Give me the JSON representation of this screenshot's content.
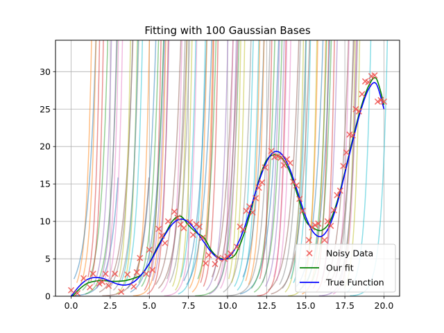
{
  "chart_data": {
    "type": "line",
    "title": "Fitting with 100 Gaussian Bases",
    "xlabel": "",
    "ylabel": "",
    "xlim": [
      -1.0,
      21.0
    ],
    "ylim": [
      0,
      34.2
    ],
    "grid": true,
    "legend_placement": "lower-right",
    "x_ticks": [
      0.0,
      2.5,
      5.0,
      7.5,
      10.0,
      12.5,
      15.0,
      17.5,
      20.0
    ],
    "x_tick_labels": [
      "0.0",
      "2.5",
      "5.0",
      "7.5",
      "10.0",
      "12.5",
      "15.0",
      "17.5",
      "20.0"
    ],
    "y_ticks": [
      0,
      5,
      10,
      15,
      20,
      25,
      30
    ],
    "y_tick_labels": [
      "0",
      "5",
      "10",
      "15",
      "20",
      "25",
      "30"
    ],
    "series": [
      {
        "name": "Noisy Data",
        "kind": "scatter",
        "marker": "x",
        "color": "#ef5350",
        "x": [
          0.0,
          0.4,
          0.8,
          1.2,
          1.4,
          1.8,
          2.0,
          2.2,
          2.4,
          2.8,
          3.2,
          3.6,
          4.0,
          4.2,
          4.4,
          4.8,
          5.0,
          5.2,
          5.6,
          5.8,
          6.0,
          6.2,
          6.6,
          6.8,
          7.0,
          7.2,
          7.6,
          7.8,
          8.0,
          8.2,
          8.4,
          8.6,
          8.8,
          9.2,
          9.4,
          9.8,
          10.0,
          10.2,
          10.6,
          10.8,
          11.0,
          11.2,
          11.4,
          11.6,
          11.8,
          12.0,
          12.2,
          12.4,
          12.8,
          13.0,
          13.2,
          13.4,
          13.6,
          13.8,
          14.0,
          14.2,
          14.4,
          14.6,
          14.8,
          15.2,
          15.4,
          15.6,
          15.8,
          16.2,
          16.4,
          16.6,
          16.8,
          17.0,
          17.2,
          17.4,
          17.6,
          17.8,
          18.0,
          18.2,
          18.4,
          18.6,
          18.8,
          19.0,
          19.2,
          19.4,
          19.6,
          19.8,
          20.0
        ],
        "y": [
          0.8,
          0.4,
          2.4,
          1.2,
          3.0,
          1.7,
          1.9,
          3.0,
          1.4,
          3.0,
          0.6,
          2.9,
          1.3,
          3.2,
          5.1,
          3.0,
          6.2,
          3.5,
          9.0,
          8.1,
          7.1,
          10.0,
          11.3,
          10.5,
          9.6,
          9.1,
          9.9,
          8.2,
          9.6,
          9.3,
          7.8,
          4.4,
          5.5,
          4.3,
          5.1,
          5.0,
          5.3,
          5.7,
          6.6,
          9.3,
          8.9,
          11.4,
          12.0,
          11.2,
          13.1,
          14.5,
          15.2,
          17.2,
          19.4,
          18.6,
          18.7,
          18.5,
          17.5,
          18.3,
          17.8,
          15.3,
          14.8,
          13.0,
          11.4,
          7.5,
          9.2,
          9.5,
          9.7,
          7.5,
          10.0,
          9.4,
          11.5,
          13.5,
          14.1,
          17.4,
          19.2,
          21.6,
          21.5,
          25.0,
          24.7,
          27.0,
          28.7,
          28.6,
          29.4,
          29.5,
          26.0,
          26.2,
          26.0
        ]
      },
      {
        "name": "Our fit",
        "kind": "line",
        "color": "#008000",
        "x": [
          0.0,
          0.5,
          1.0,
          1.5,
          2.0,
          2.5,
          3.0,
          3.5,
          4.0,
          4.5,
          5.0,
          5.5,
          6.0,
          6.5,
          7.0,
          7.5,
          8.0,
          8.5,
          9.0,
          9.5,
          10.0,
          10.5,
          11.0,
          11.5,
          12.0,
          12.5,
          13.0,
          13.5,
          14.0,
          14.5,
          15.0,
          15.5,
          16.0,
          16.5,
          17.0,
          17.5,
          18.0,
          18.5,
          19.0,
          19.5,
          20.0
        ],
        "y": [
          -0.2,
          0.9,
          1.7,
          2.0,
          2.1,
          2.0,
          2.0,
          2.1,
          2.4,
          2.9,
          4.4,
          6.5,
          8.3,
          10.1,
          10.7,
          9.5,
          8.5,
          7.8,
          6.0,
          5.1,
          5.0,
          5.6,
          8.0,
          11.5,
          15.5,
          18.2,
          18.9,
          18.4,
          16.5,
          13.3,
          10.1,
          9.1,
          8.8,
          9.8,
          12.6,
          16.6,
          21.0,
          25.0,
          28.0,
          29.1,
          25.6
        ]
      },
      {
        "name": "True Function",
        "kind": "line",
        "color": "#0000ff",
        "x": [
          0.0,
          0.5,
          1.0,
          1.5,
          2.0,
          2.5,
          3.0,
          3.5,
          4.0,
          4.5,
          5.0,
          5.5,
          6.0,
          6.5,
          7.0,
          7.5,
          8.0,
          8.5,
          9.0,
          9.5,
          10.0,
          10.5,
          11.0,
          11.5,
          12.0,
          12.5,
          13.0,
          13.5,
          14.0,
          14.5,
          15.0,
          15.5,
          16.0,
          16.5,
          17.0,
          17.5,
          18.0,
          18.5,
          19.0,
          19.5,
          20.0
        ],
        "y": [
          0.0,
          1.3,
          2.2,
          2.5,
          2.4,
          2.0,
          1.6,
          1.5,
          1.9,
          2.9,
          4.4,
          6.3,
          8.2,
          9.7,
          10.3,
          9.9,
          8.7,
          7.2,
          5.8,
          5.0,
          5.1,
          6.4,
          8.7,
          11.9,
          15.3,
          18.0,
          19.3,
          18.9,
          16.9,
          13.8,
          10.6,
          8.5,
          8.0,
          9.3,
          12.3,
          16.4,
          20.7,
          24.7,
          27.6,
          28.4,
          25.0
        ]
      }
    ],
    "basis_curves": {
      "count": 100,
      "alpha": 0.5,
      "palette": [
        "#1f77b4",
        "#ff7f0e",
        "#2ca02c",
        "#d62728",
        "#9467bd",
        "#8c564b",
        "#e377c2",
        "#7f7f7f",
        "#bcbd22",
        "#17becf"
      ]
    },
    "legend": [
      "Noisy Data",
      "Our fit",
      "True Function"
    ]
  }
}
